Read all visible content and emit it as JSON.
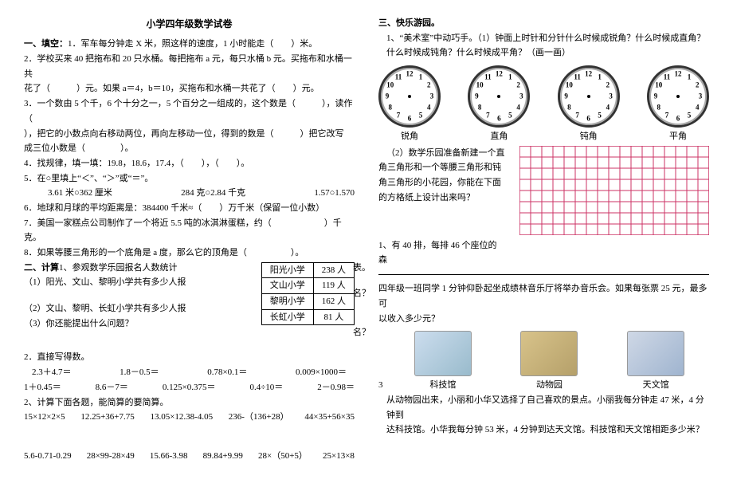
{
  "title": "小学四年级数学试卷",
  "left": {
    "fill_head": "一、填空：",
    "q1": "1．军车每分钟走 X 米，照这样的速度，1 小时能走（　　）米。",
    "q2a": "2．学校买来 40 把拖布和 20 只水桶。每把拖布 a 元，每只水桶 b 元。买拖布和水桶一共",
    "q2b": "花了（　　　）元。如果 a＝4，b＝10，买拖布和水桶一共花了（　　）元。",
    "q3a": "3．一个数由 5 个千，6 个十分之一，5 个百分之一组成的，这个数是（　　　），读作（",
    "q3b": "），把它的小数点向右移动两位，再向左移动一位，得到的数是（　　　）把它改写",
    "q3c": "成三位小数是（　　　　）。",
    "q4": "4．找规律，填一填：19.8，18.6，17.4，（　　），（　　）。",
    "q5": "5．在○里填上“＜”、“＞”或“＝”。",
    "q5row": [
      "3.61 米○362 厘米",
      "284 克○2.84 千克",
      "1.57○1.570"
    ],
    "q6": "6．地球和月球的平均距离是：384400 千米≈（　　）万千米（保留一位小数）",
    "q7": "7．美国一家糕点公司制作了一个将近 5.5 吨的冰淇淋蛋糕，约（　　　　　　）千克。",
    "q8": "8．如果等腰三角形的一个底角是 a 度，那么它的顶角是（　　　　　）。",
    "calc_head": "二、计算",
    "c1_a": "1、参观数学乐园报名人数统计",
    "c1_b": "（1）阳光、文山、黎明小学共有多少人报",
    "c1_c": "（2）文山、黎明、长虹小学共有多少人报",
    "c1_d": "（3）你还能提出什么问题？",
    "table_rows": [
      [
        "阳光小学",
        "238 人"
      ],
      [
        "文山小学",
        "119 人"
      ],
      [
        "黎明小学",
        "162 人"
      ],
      [
        "长虹小学",
        "81 人"
      ]
    ],
    "table_right_top": "表。",
    "table_right_mid1": "名？",
    "table_right_mid2": "名？",
    "c2": "2．直接写得数。",
    "c2row1": [
      "2.3＋4.7＝",
      "1.8－0.5＝",
      "0.78×0.1＝",
      "0.009×1000＝"
    ],
    "c2row2": [
      "1＋0.45＝",
      "8.6－7＝",
      "0.125×0.375＝",
      "0.4÷10＝",
      "2－0.98＝"
    ],
    "c3": "2、计算下面各题，能简算的要简算。",
    "c3row1": [
      "15×12×2×5",
      "12.25+36+7.75",
      "13.05×12.38-4.05",
      "236-（136+28）",
      "44×35+56×35"
    ],
    "c3row2": [
      "5.6-0.71-0.29",
      "28×99-28×49",
      "15.66-3.98",
      "89.84+9.99",
      "28×（50+5）",
      "25×13×8"
    ]
  },
  "right": {
    "head": "三、快乐游园。",
    "q1a": "1、“美术室”中动巧手。（1）钟面上时针和分针什么时候成锐角？什么时候成直角？",
    "q1b": "什么时候成钝角？什么时候成平角？（画一画）",
    "clock_labels": [
      "锐角",
      "直角",
      "钝角",
      "平角"
    ],
    "clock_numbers": [
      "12",
      "1",
      "2",
      "3",
      "4",
      "5",
      "6",
      "7",
      "8",
      "9",
      "10",
      "11"
    ],
    "q2a": "（2）数学乐园准备新建一个直",
    "q2b": "角三角形和一个等腰三角形和钝",
    "q2c": "角三角形的小花园，你能在下面",
    "q2d": "的方格纸上设计出来吗？",
    "grid": {
      "cols": 17,
      "rows": 8,
      "cell": 14,
      "color": "#cc3366"
    },
    "q3": "1、有 40 排，每排 46 个座位的",
    "q3b": "森",
    "q4a": "四年级一班同学 1 分钟仰卧起坐成绩林音乐厅将举办音乐会。如果每张票 25 元，最多可",
    "q4b": "以收入多少元？",
    "q5num": "3",
    "img_labels": [
      "科技馆",
      "动物园",
      "天文馆"
    ],
    "q6a": "从动物园出来，小丽和小华又选择了自己喜欢的景点。小丽我每分钟走 47 米，4 分钟到",
    "q6b": "达科技馆。小华我每分钟 53 米，4 分钟到达天文馆。科技馆和天文馆相距多少米？"
  }
}
